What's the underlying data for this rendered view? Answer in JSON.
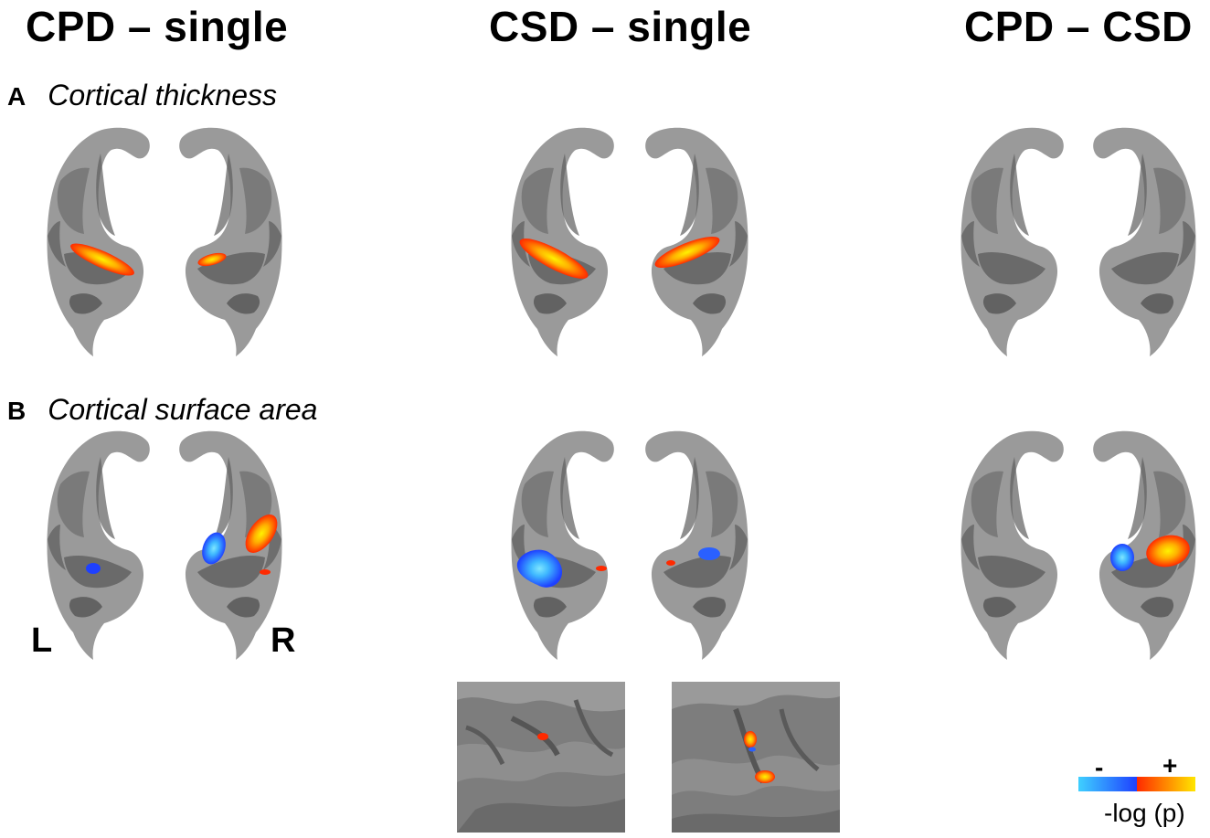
{
  "columns": [
    {
      "title": "CPD – single"
    },
    {
      "title": "CSD – single"
    },
    {
      "title": "CPD – CSD"
    }
  ],
  "rows": [
    {
      "letter": "A",
      "label": "Cortical thickness"
    },
    {
      "letter": "B",
      "label": "Cortical surface area"
    }
  ],
  "hemisphere_labels": {
    "left": "L",
    "right": "R"
  },
  "colorbar": {
    "negative_sign": "-",
    "positive_sign": "+",
    "label": "-log (p)",
    "negative_colors": [
      "#3fd0ff",
      "#1e40ff"
    ],
    "positive_colors": [
      "#ff2a00",
      "#ffe600"
    ]
  },
  "colors": {
    "cortex_light": "#9a9a9a",
    "cortex_dark": "#5e5e5e",
    "positive": "#ff3a00",
    "negative": "#2a60ff"
  }
}
